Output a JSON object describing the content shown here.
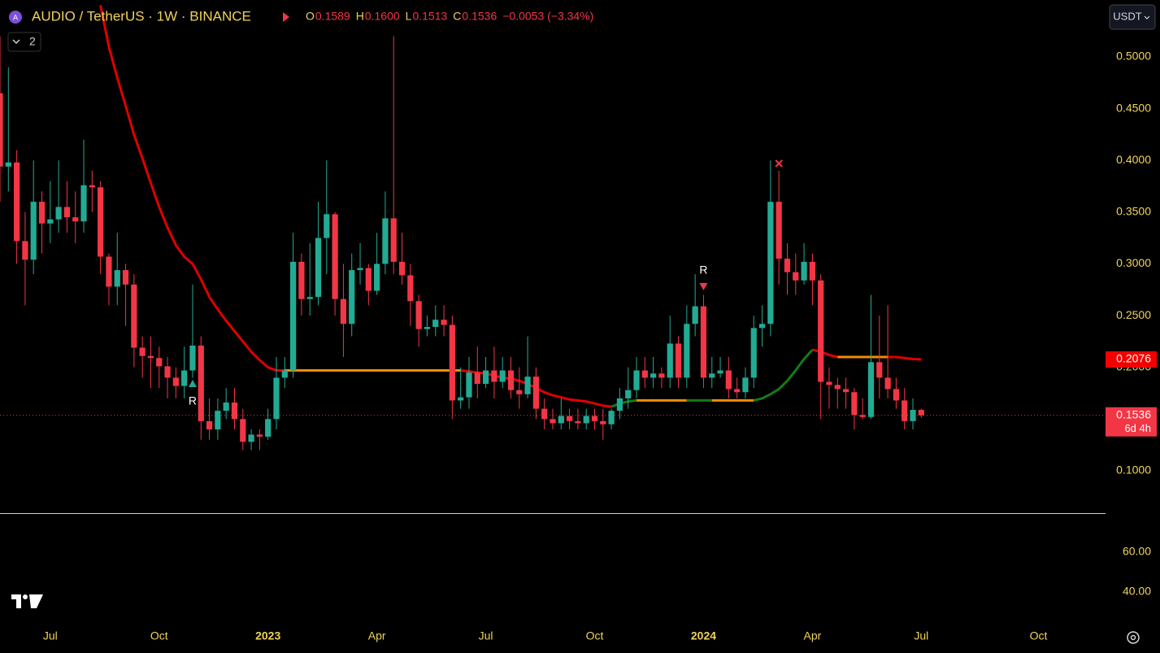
{
  "header": {
    "symbol": "AUDIO / TetherUS · 1W · BINANCE",
    "ohlc": [
      [
        "O",
        "0.1589"
      ],
      [
        "H",
        "0.1600"
      ],
      [
        "L",
        "0.1513"
      ],
      [
        "C",
        "0.1536"
      ]
    ],
    "change": "−0.0053 (−3.34%)",
    "indicators": "2",
    "currency": "USDT"
  },
  "chart_data": {
    "type": "candlestick",
    "up_color": "#22ab94",
    "down_color": "#f23645",
    "open": [
      0.465,
      0.394,
      0.398,
      0.322,
      0.304,
      0.36,
      0.339,
      0.343,
      0.355,
      0.345,
      0.341,
      0.376,
      0.374,
      0.307,
      0.278,
      0.294,
      0.28,
      0.219,
      0.211,
      0.209,
      0.201,
      0.19,
      0.182,
      0.197,
      0.221,
      0.148,
      0.14,
      0.158,
      0.166,
      0.15,
      0.128,
      0.135,
      0.133,
      0.15,
      0.19,
      0.197,
      0.302,
      0.266,
      0.268,
      0.325,
      0.348,
      0.266,
      0.242,
      0.294,
      0.296,
      0.274,
      0.3,
      0.344,
      0.302,
      0.289,
      0.264,
      0.237,
      0.239,
      0.246,
      0.241,
      0.168,
      0.171,
      0.195,
      0.184,
      0.197,
      0.186,
      0.197,
      0.178,
      0.174,
      0.191,
      0.16,
      0.15,
      0.146,
      0.153,
      0.148,
      0.146,
      0.153,
      0.148,
      0.145,
      0.158,
      0.17,
      0.178,
      0.197,
      0.19,
      0.194,
      0.19,
      0.223,
      0.19,
      0.242,
      0.259,
      0.19,
      0.194,
      0.197,
      0.179,
      0.176,
      0.19,
      0.238,
      0.242,
      0.36,
      0.305,
      0.292,
      0.284,
      0.302,
      0.284,
      0.186,
      0.183,
      0.179,
      0.176,
      0.154,
      0.152,
      0.205,
      0.19,
      0.179,
      0.168,
      0.148,
      0.1589
    ],
    "high": [
      0.52,
      0.49,
      0.41,
      0.35,
      0.4,
      0.37,
      0.38,
      0.4,
      0.38,
      0.37,
      0.42,
      0.39,
      0.38,
      0.31,
      0.33,
      0.3,
      0.29,
      0.23,
      0.23,
      0.22,
      0.21,
      0.2,
      0.22,
      0.28,
      0.23,
      0.17,
      0.17,
      0.18,
      0.18,
      0.16,
      0.14,
      0.14,
      0.16,
      0.21,
      0.21,
      0.33,
      0.31,
      0.32,
      0.36,
      0.4,
      0.35,
      0.3,
      0.31,
      0.32,
      0.3,
      0.33,
      0.37,
      0.52,
      0.33,
      0.3,
      0.27,
      0.25,
      0.26,
      0.26,
      0.25,
      0.2,
      0.21,
      0.22,
      0.21,
      0.22,
      0.21,
      0.21,
      0.2,
      0.23,
      0.2,
      0.17,
      0.16,
      0.17,
      0.16,
      0.16,
      0.16,
      0.16,
      0.16,
      0.16,
      0.18,
      0.2,
      0.21,
      0.21,
      0.21,
      0.2,
      0.25,
      0.23,
      0.26,
      0.29,
      0.27,
      0.21,
      0.21,
      0.21,
      0.19,
      0.2,
      0.25,
      0.26,
      0.4,
      0.39,
      0.32,
      0.31,
      0.32,
      0.31,
      0.29,
      0.2,
      0.19,
      0.19,
      0.18,
      0.17,
      0.27,
      0.25,
      0.26,
      0.19,
      0.18,
      0.17,
      0.16
    ],
    "low": [
      0.36,
      0.37,
      0.3,
      0.26,
      0.29,
      0.31,
      0.32,
      0.33,
      0.33,
      0.32,
      0.33,
      0.35,
      0.29,
      0.26,
      0.26,
      0.24,
      0.2,
      0.19,
      0.18,
      0.18,
      0.17,
      0.17,
      0.17,
      0.19,
      0.13,
      0.13,
      0.13,
      0.15,
      0.14,
      0.12,
      0.12,
      0.12,
      0.13,
      0.14,
      0.18,
      0.19,
      0.25,
      0.25,
      0.26,
      0.29,
      0.25,
      0.21,
      0.23,
      0.28,
      0.26,
      0.27,
      0.29,
      0.29,
      0.28,
      0.24,
      0.22,
      0.23,
      0.23,
      0.23,
      0.15,
      0.16,
      0.16,
      0.17,
      0.18,
      0.17,
      0.18,
      0.17,
      0.16,
      0.17,
      0.15,
      0.14,
      0.14,
      0.14,
      0.14,
      0.14,
      0.14,
      0.14,
      0.13,
      0.14,
      0.15,
      0.16,
      0.17,
      0.18,
      0.18,
      0.18,
      0.18,
      0.18,
      0.18,
      0.23,
      0.18,
      0.18,
      0.19,
      0.17,
      0.17,
      0.17,
      0.18,
      0.22,
      0.23,
      0.28,
      0.27,
      0.27,
      0.28,
      0.26,
      0.15,
      0.16,
      0.16,
      0.16,
      0.14,
      0.15,
      0.15,
      0.17,
      0.17,
      0.16,
      0.14,
      0.14,
      0.1513
    ],
    "close": [
      0.394,
      0.398,
      0.322,
      0.304,
      0.36,
      0.339,
      0.343,
      0.355,
      0.345,
      0.341,
      0.376,
      0.374,
      0.307,
      0.278,
      0.294,
      0.28,
      0.219,
      0.211,
      0.209,
      0.201,
      0.19,
      0.182,
      0.197,
      0.221,
      0.148,
      0.14,
      0.158,
      0.166,
      0.15,
      0.128,
      0.135,
      0.133,
      0.15,
      0.19,
      0.197,
      0.302,
      0.266,
      0.268,
      0.325,
      0.348,
      0.266,
      0.242,
      0.294,
      0.296,
      0.274,
      0.3,
      0.344,
      0.302,
      0.289,
      0.264,
      0.237,
      0.239,
      0.246,
      0.241,
      0.168,
      0.171,
      0.195,
      0.184,
      0.197,
      0.186,
      0.197,
      0.178,
      0.174,
      0.191,
      0.16,
      0.15,
      0.146,
      0.153,
      0.148,
      0.146,
      0.153,
      0.148,
      0.145,
      0.158,
      0.17,
      0.178,
      0.197,
      0.19,
      0.194,
      0.19,
      0.223,
      0.19,
      0.242,
      0.259,
      0.19,
      0.194,
      0.197,
      0.179,
      0.176,
      0.19,
      0.238,
      0.242,
      0.36,
      0.305,
      0.292,
      0.284,
      0.302,
      0.284,
      0.186,
      0.183,
      0.179,
      0.176,
      0.154,
      0.152,
      0.205,
      0.19,
      0.179,
      0.168,
      0.148,
      0.1589,
      0.1536
    ],
    "series": [
      {
        "color": "#e00000",
        "values": [
          null,
          null,
          null,
          null,
          null,
          null,
          null,
          null,
          null,
          null,
          null,
          null,
          0.55,
          0.51,
          0.48,
          0.453,
          0.425,
          0.402,
          0.378,
          0.355,
          0.335,
          0.318,
          0.307,
          0.3,
          0.285,
          0.268,
          0.256,
          0.245,
          0.235,
          0.225,
          0.215,
          0.207,
          0.2,
          0.197,
          0.197,
          null,
          null,
          null,
          null,
          null,
          null,
          null,
          null,
          null,
          null,
          null,
          null,
          null,
          null,
          null,
          null,
          null,
          null,
          null,
          null,
          0.197,
          0.196,
          0.195,
          0.194,
          0.192,
          0.19,
          0.189,
          0.187,
          0.184,
          0.18,
          0.176,
          0.173,
          0.171,
          0.169,
          0.168,
          0.167,
          0.165,
          0.163,
          0.162,
          null,
          null,
          null,
          null,
          null,
          null,
          null,
          null,
          null,
          null,
          null,
          null,
          null,
          null,
          null,
          null,
          null,
          null,
          null,
          null,
          null,
          null,
          null,
          0.217,
          0.215,
          0.212,
          0.21,
          null,
          null,
          null,
          null,
          null,
          0.21,
          0.21,
          0.209,
          0.208,
          0.2076
        ]
      },
      {
        "color": "#f08c00",
        "values": [
          null,
          null,
          null,
          null,
          null,
          null,
          null,
          null,
          null,
          null,
          null,
          null,
          null,
          null,
          null,
          null,
          null,
          null,
          null,
          null,
          null,
          null,
          null,
          null,
          null,
          null,
          null,
          null,
          null,
          null,
          null,
          null,
          null,
          null,
          0.197,
          0.197,
          0.197,
          0.197,
          0.197,
          0.197,
          0.197,
          0.197,
          0.197,
          0.197,
          0.197,
          0.197,
          0.197,
          0.197,
          0.197,
          0.197,
          0.197,
          0.197,
          0.197,
          0.197,
          0.197,
          0.197,
          null,
          null,
          null,
          null,
          null,
          null,
          null,
          null,
          null,
          null,
          null,
          null,
          null,
          null,
          null,
          null,
          null,
          null,
          null,
          null,
          0.168,
          0.168,
          0.168,
          0.168,
          0.168,
          0.168,
          0.168,
          null,
          null,
          0.168,
          0.168,
          0.168,
          0.168,
          0.168,
          0.168,
          null,
          null,
          null,
          null,
          null,
          null,
          null,
          null,
          null,
          0.21,
          0.21,
          0.21,
          0.21,
          0.21,
          0.21,
          0.21,
          null,
          null,
          null,
          null
        ]
      },
      {
        "color": "#177a17",
        "values": [
          null,
          null,
          null,
          null,
          null,
          null,
          null,
          null,
          null,
          null,
          null,
          null,
          null,
          null,
          null,
          null,
          null,
          null,
          null,
          null,
          null,
          null,
          null,
          null,
          null,
          null,
          null,
          null,
          null,
          null,
          null,
          null,
          null,
          null,
          null,
          null,
          null,
          null,
          null,
          null,
          null,
          null,
          null,
          null,
          null,
          null,
          null,
          null,
          null,
          null,
          null,
          null,
          null,
          null,
          null,
          null,
          null,
          null,
          null,
          null,
          null,
          null,
          null,
          null,
          null,
          null,
          null,
          null,
          null,
          null,
          null,
          null,
          null,
          0.162,
          0.165,
          0.167,
          0.168,
          null,
          null,
          null,
          null,
          null,
          0.168,
          0.168,
          0.168,
          0.168,
          null,
          null,
          null,
          null,
          0.168,
          0.17,
          0.174,
          0.179,
          0.187,
          0.197,
          0.208,
          0.217,
          null,
          null,
          null,
          null,
          null,
          null,
          null,
          null,
          null,
          null,
          null,
          null,
          null
        ]
      }
    ],
    "price_tags": [
      {
        "value": 0.2076,
        "label": "0.2076",
        "color": "#f20000"
      },
      {
        "value": 0.1536,
        "label": "0.1536",
        "countdown": "6d 4h",
        "color": "#f23645"
      }
    ],
    "annotations": [
      "R",
      "R"
    ],
    "xlim": [
      0,
      132
    ],
    "xticks": [
      {
        "value": 6,
        "label": "Jul"
      },
      {
        "value": 19,
        "label": "Oct"
      },
      {
        "value": 32,
        "label": "2023"
      },
      {
        "value": 45,
        "label": "Apr"
      },
      {
        "value": 58,
        "label": "Jul"
      },
      {
        "value": 71,
        "label": "Oct"
      },
      {
        "value": 84,
        "label": "2024"
      },
      {
        "value": 97,
        "label": "Apr"
      },
      {
        "value": 110,
        "label": "Jul"
      },
      {
        "value": 124,
        "label": "Oct"
      }
    ],
    "ylim": [
      0.0591,
      0.555
    ],
    "yticks": [
      {
        "value": 0.1,
        "label": "0.1000"
      },
      {
        "value": 0.15,
        "label": "0.1500"
      },
      {
        "value": 0.2,
        "label": "0.2000"
      },
      {
        "value": 0.25,
        "label": "0.2500"
      },
      {
        "value": 0.3,
        "label": "0.3000"
      },
      {
        "value": 0.35,
        "label": "0.3500"
      },
      {
        "value": 0.4,
        "label": "0.4000"
      },
      {
        "value": 0.45,
        "label": "0.4500"
      },
      {
        "value": 0.5,
        "label": "0.5000"
      }
    ],
    "oscillator": {
      "ylim": [
        24.9,
        79.2
      ],
      "yticks": [
        {
          "value": 60,
          "label": "60.00"
        },
        {
          "value": 40,
          "label": "40.00"
        }
      ]
    }
  }
}
